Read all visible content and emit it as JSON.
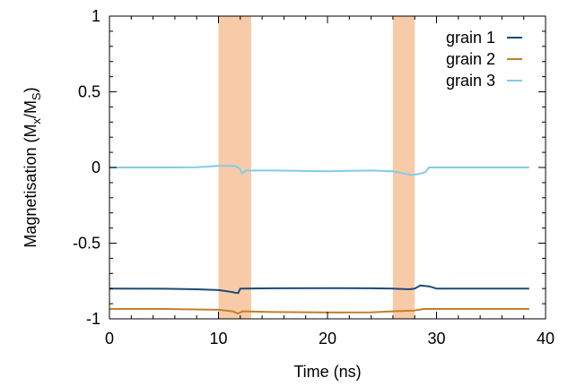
{
  "chart_data": {
    "type": "line",
    "xlabel": "Time (ns)",
    "ylabel": {
      "parts": [
        {
          "text": "Magnetisation (M",
          "shift": "none"
        },
        {
          "text": "x",
          "shift": "sub"
        },
        {
          "text": "/M",
          "shift": "none"
        },
        {
          "text": "S",
          "shift": "sub"
        },
        {
          "text": ")",
          "shift": "none"
        }
      ]
    },
    "xlim": [
      0,
      40
    ],
    "ylim": [
      -1,
      1
    ],
    "xticks": [
      0,
      10,
      20,
      30,
      40
    ],
    "xtick_labels": [
      "0",
      "10",
      "20",
      "30",
      "40"
    ],
    "yticks": [
      -1,
      -0.5,
      0,
      0.5,
      1
    ],
    "ytick_labels": [
      "-1",
      "-0.5",
      "0",
      "0.5",
      "1"
    ],
    "grid": false,
    "legend_position": "top-right",
    "shaded_regions": [
      {
        "x0": 10,
        "x1": 13,
        "color": "#f8cba8"
      },
      {
        "x0": 26,
        "x1": 28,
        "color": "#f8cba8"
      }
    ],
    "series": [
      {
        "name": "grain 1",
        "color": "#1c4a78",
        "points": [
          [
            0,
            -0.8
          ],
          [
            5,
            -0.801
          ],
          [
            8,
            -0.805
          ],
          [
            10,
            -0.81
          ],
          [
            11,
            -0.82
          ],
          [
            11.8,
            -0.83
          ],
          [
            12,
            -0.8
          ],
          [
            15,
            -0.798
          ],
          [
            20,
            -0.797
          ],
          [
            24,
            -0.798
          ],
          [
            26,
            -0.8
          ],
          [
            27.5,
            -0.805
          ],
          [
            28,
            -0.8
          ],
          [
            28.5,
            -0.78
          ],
          [
            29.3,
            -0.785
          ],
          [
            30,
            -0.8
          ],
          [
            35,
            -0.8
          ],
          [
            38.5,
            -0.8
          ]
        ]
      },
      {
        "name": "grain 2",
        "color": "#c47f27",
        "points": [
          [
            0,
            -0.935
          ],
          [
            5,
            -0.935
          ],
          [
            10,
            -0.94
          ],
          [
            11.3,
            -0.95
          ],
          [
            11.8,
            -0.965
          ],
          [
            12.2,
            -0.95
          ],
          [
            15,
            -0.955
          ],
          [
            20,
            -0.958
          ],
          [
            24,
            -0.957
          ],
          [
            26,
            -0.95
          ],
          [
            28,
            -0.945
          ],
          [
            28.8,
            -0.935
          ],
          [
            30,
            -0.935
          ],
          [
            35,
            -0.935
          ],
          [
            38.5,
            -0.935
          ]
        ]
      },
      {
        "name": "grain 3",
        "color": "#83cbe6",
        "points": [
          [
            0,
            0.0
          ],
          [
            5,
            0.0
          ],
          [
            8,
            0.002
          ],
          [
            10,
            0.01
          ],
          [
            11.5,
            0.01
          ],
          [
            11.9,
            -0.005
          ],
          [
            12.2,
            -0.04
          ],
          [
            12.5,
            -0.02
          ],
          [
            15,
            -0.02
          ],
          [
            20,
            -0.025
          ],
          [
            24,
            -0.02
          ],
          [
            26,
            -0.025
          ],
          [
            27,
            -0.04
          ],
          [
            27.8,
            -0.05
          ],
          [
            28.5,
            -0.04
          ],
          [
            29,
            -0.03
          ],
          [
            29.3,
            0.0
          ],
          [
            30,
            0.0
          ],
          [
            35,
            0.0
          ],
          [
            38.5,
            0.0
          ]
        ]
      }
    ]
  }
}
